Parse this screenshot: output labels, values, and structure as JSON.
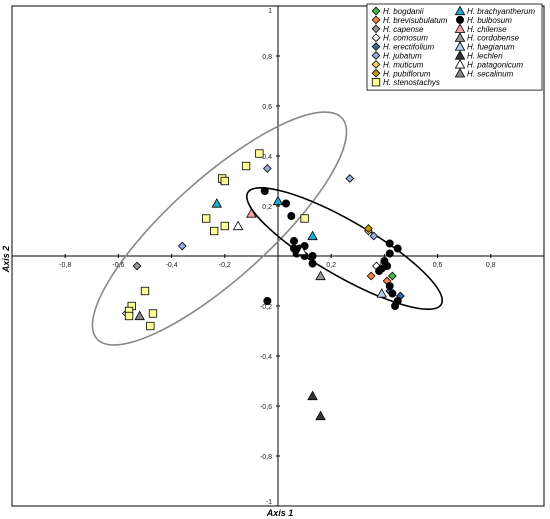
{
  "chart_data": {
    "type": "scatter",
    "xlabel": "Axis 1",
    "ylabel": "Axis 2",
    "xlim": [
      -1,
      1
    ],
    "ylim": [
      -1,
      1
    ],
    "x_ticks": [
      "-0,8",
      "-0,6",
      "-0,4",
      "-0,2",
      "0,2",
      "0,4",
      "0,6",
      "0,8"
    ],
    "y_ticks": [
      "1",
      "0,8",
      "0,6",
      "0,4",
      "0,2",
      "-0,2",
      "-0,4",
      "-0,6",
      "-0,8",
      "-1"
    ],
    "legend_position": "top-right",
    "ellipses": [
      {
        "stroke": "#888888",
        "cx": -0.22,
        "cy": 0.11,
        "rx": 0.62,
        "ry": 0.2,
        "angle_deg": 42
      },
      {
        "stroke": "#000000",
        "cx": 0.25,
        "cy": 0.03,
        "rx": 0.42,
        "ry": 0.11,
        "angle_deg": -30
      }
    ],
    "series": [
      {
        "name": "H. bogdanii",
        "marker": "diamond",
        "color": "#44bb44",
        "points": [
          [
            0.43,
            -0.08
          ],
          [
            -0.21,
            0.3
          ]
        ]
      },
      {
        "name": "H. brevisubulatum",
        "marker": "diamond",
        "color": "#ff8040",
        "points": [
          [
            0.35,
            -0.08
          ],
          [
            0.41,
            -0.1
          ]
        ]
      },
      {
        "name": "H. capense",
        "marker": "diamond",
        "color": "#999999",
        "points": [
          [
            -0.53,
            -0.04
          ]
        ]
      },
      {
        "name": "H. comosum",
        "marker": "diamond",
        "color": "#ffffff",
        "points": [
          [
            0.37,
            -0.04
          ],
          [
            -0.57,
            -0.23
          ]
        ]
      },
      {
        "name": "H. erectifolium",
        "marker": "diamond",
        "color": "#336699",
        "points": [
          [
            0.42,
            -0.14
          ],
          [
            0.46,
            -0.16
          ]
        ]
      },
      {
        "name": "H. jubatum",
        "marker": "diamond",
        "color": "#99aadd",
        "points": [
          [
            -0.36,
            0.04
          ],
          [
            -0.04,
            0.35
          ],
          [
            0.27,
            0.31
          ],
          [
            0.36,
            0.08
          ]
        ]
      },
      {
        "name": "H. muticum",
        "marker": "diamond",
        "color": "#f0d060",
        "points": [
          [
            0.34,
            0.1
          ]
        ]
      },
      {
        "name": "H. pubiflorum",
        "marker": "diamond",
        "color": "#cc9900",
        "points": [
          [
            0.34,
            0.11
          ]
        ]
      },
      {
        "name": "H. stenostachys",
        "marker": "square",
        "color": "#ffff99",
        "points": [
          [
            -0.07,
            0.41
          ],
          [
            -0.12,
            0.36
          ],
          [
            -0.21,
            0.31
          ],
          [
            -0.2,
            0.3
          ],
          [
            -0.2,
            0.12
          ],
          [
            -0.24,
            0.1
          ],
          [
            -0.27,
            0.15
          ],
          [
            0.1,
            0.15
          ],
          [
            -0.55,
            -0.2
          ],
          [
            -0.56,
            -0.22
          ],
          [
            -0.56,
            -0.24
          ],
          [
            -0.5,
            -0.14
          ],
          [
            -0.48,
            -0.28
          ],
          [
            -0.47,
            -0.23
          ]
        ]
      },
      {
        "name": "H. brachyantherum",
        "marker": "triangle",
        "color": "#22aacc",
        "points": [
          [
            -0.23,
            0.21
          ],
          [
            0.0,
            0.22
          ],
          [
            0.13,
            0.08
          ]
        ]
      },
      {
        "name": "H. bulbosum",
        "marker": "circle",
        "color": "#000000",
        "points": [
          [
            -0.05,
            0.26
          ],
          [
            0.03,
            0.21
          ],
          [
            0.05,
            0.16
          ],
          [
            0.06,
            0.06
          ],
          [
            0.08,
            0.03
          ],
          [
            0.07,
            0.01
          ],
          [
            0.1,
            0.04
          ],
          [
            0.1,
            0.0
          ],
          [
            0.13,
            0.0
          ],
          [
            0.13,
            -0.03
          ],
          [
            0.06,
            0.03
          ],
          [
            -0.04,
            -0.18
          ],
          [
            0.42,
            -0.12
          ],
          [
            0.43,
            -0.15
          ],
          [
            0.45,
            -0.18
          ],
          [
            0.44,
            -0.2
          ],
          [
            0.39,
            -0.05
          ],
          [
            0.38,
            -0.06
          ],
          [
            0.42,
            0.05
          ],
          [
            0.45,
            0.03
          ],
          [
            0.42,
            0.01
          ],
          [
            0.4,
            -0.02
          ],
          [
            0.41,
            -0.04
          ]
        ]
      },
      {
        "name": "H. chilense",
        "marker": "triangle",
        "color": "#f4a7a0",
        "points": [
          [
            -0.1,
            0.17
          ]
        ]
      },
      {
        "name": "H. cordobense",
        "marker": "triangle",
        "color": "#999999",
        "points": [
          [
            0.16,
            -0.08
          ]
        ]
      },
      {
        "name": "H. fuegianum",
        "marker": "triangle",
        "color": "#bbccee",
        "points": [
          [
            0.39,
            -0.15
          ]
        ]
      },
      {
        "name": "H. lechleri",
        "marker": "triangle",
        "color": "#333333",
        "points": [
          [
            0.13,
            -0.56
          ],
          [
            0.16,
            -0.64
          ]
        ]
      },
      {
        "name": "H. patagonicum",
        "marker": "triangle",
        "color": "#ffffff",
        "points": [
          [
            -0.15,
            0.12
          ],
          [
            0.09,
            0.02
          ]
        ]
      },
      {
        "name": "H. secalinum",
        "marker": "triangle",
        "color": "#888888",
        "points": [
          [
            -0.52,
            -0.24
          ]
        ]
      }
    ]
  }
}
